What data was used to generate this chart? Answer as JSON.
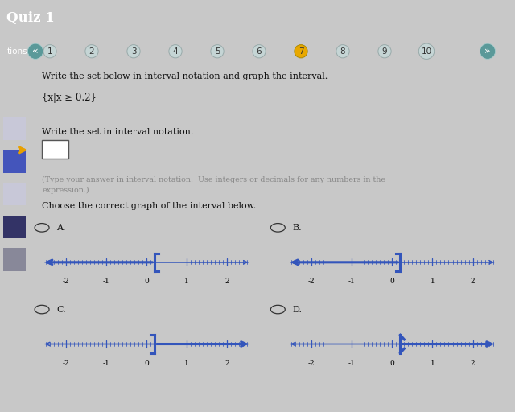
{
  "title": "Quiz 1",
  "nav_bg": "#4a9e96",
  "nav_dark_bg": "#2a2e3a",
  "nav_numbers": [
    "1",
    "2",
    "3",
    "4",
    "5",
    "6",
    "7",
    "8",
    "9",
    "10"
  ],
  "nav_highlight_idx": 6,
  "question_text": "Write the set below in interval notation and graph the interval.",
  "set_notation": "{x|x ≥ 0.2}",
  "instruction1": "Write the set in interval notation.",
  "instruction2_line1": "(Type your answer in interval notation.  Use integers or decimals for any numbers in the",
  "instruction2_line2": "expression.)",
  "instruction3": "Choose the correct graph of the interval below.",
  "outer_bg": "#c8c8c8",
  "sidebar_bg": "#e0e0e8",
  "white_bg": "#ffffff",
  "border_blue": "#4455aa",
  "line_color": "#3355bb",
  "text_black": "#111111",
  "text_gray": "#888888",
  "radio_color": "#333333",
  "yellow_arrow": "#e8a000",
  "nav_btn_bg": "#c5d5d5",
  "nav_btn_hl": "#e8a800",
  "nav_chevron_bg": "#5a9999",
  "graph_A_type": "left_closed",
  "graph_B_type": "left_closed_short",
  "graph_C_type": "right_open",
  "graph_D_type": "right_paren",
  "graph_point": 0.2,
  "xlim": [
    -2.6,
    2.6
  ],
  "tick_step": 0.1,
  "major_ticks": [
    -2,
    -1,
    0,
    1,
    2
  ],
  "tick_labels": [
    "-2",
    "-1",
    "0",
    "1",
    "2"
  ]
}
